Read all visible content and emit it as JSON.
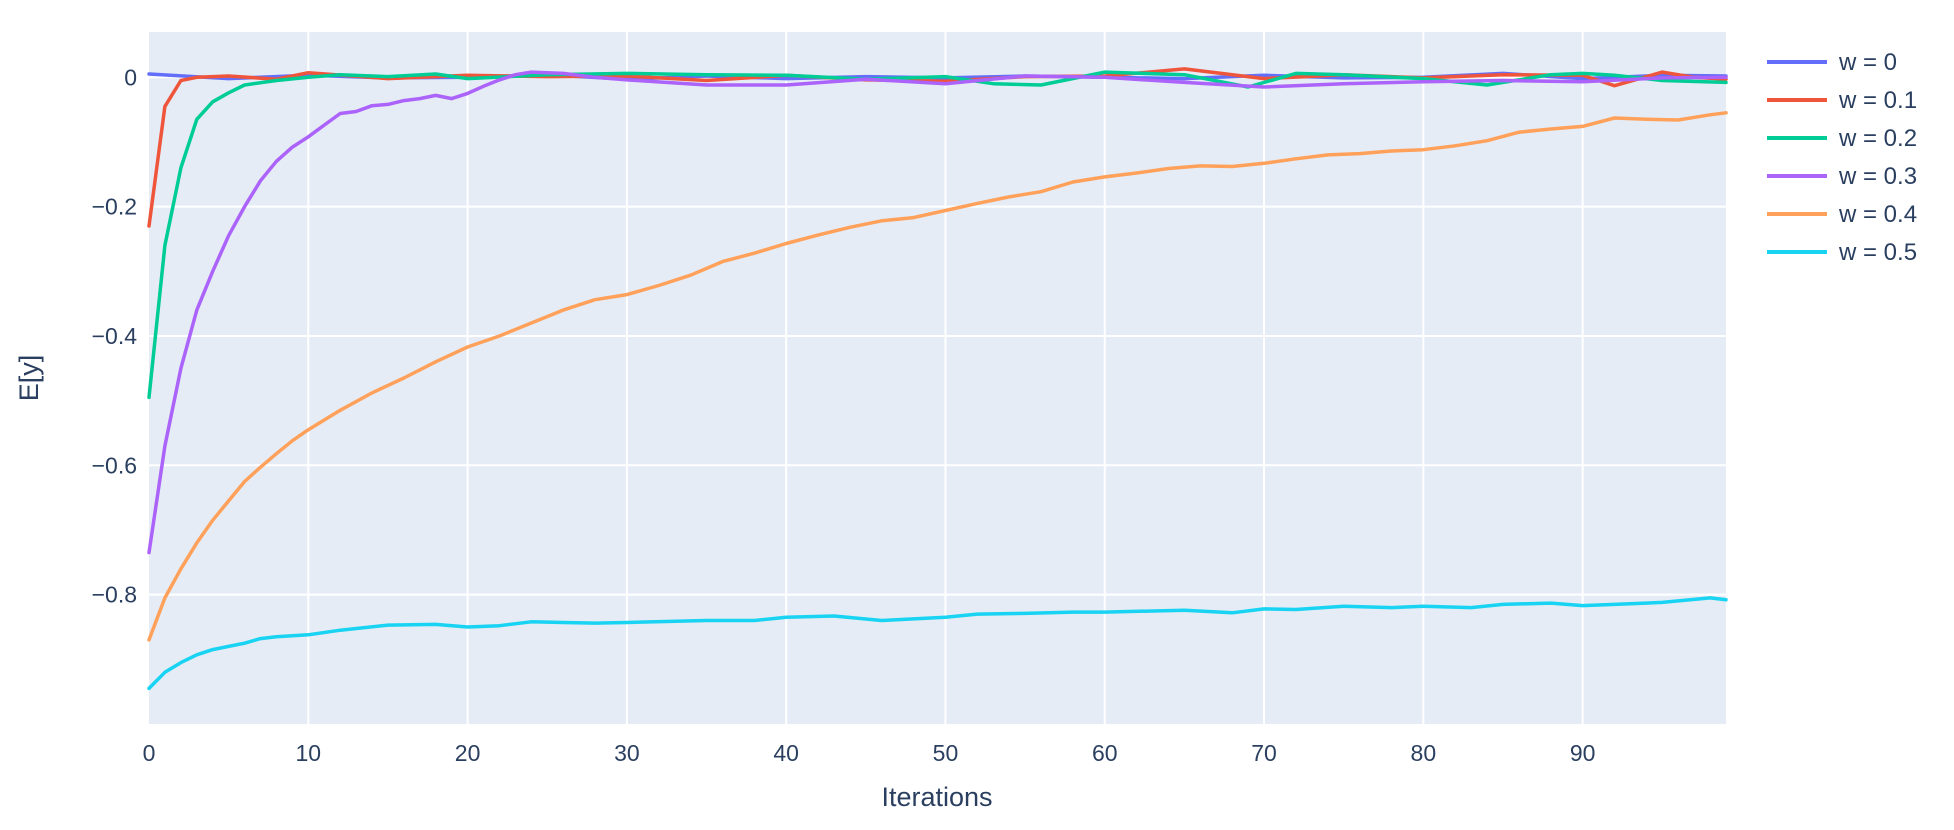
{
  "chart_data": {
    "type": "line",
    "title": "",
    "xlabel": "Iterations",
    "ylabel": "E[y]",
    "xlim": [
      0,
      99
    ],
    "ylim": [
      -1.0,
      0.07
    ],
    "x_ticks": [
      0,
      10,
      20,
      30,
      40,
      50,
      60,
      70,
      80,
      90
    ],
    "y_ticks": [
      0,
      -0.2,
      -0.4,
      -0.6,
      -0.8
    ],
    "y_tick_labels": [
      "0",
      "−0.2",
      "−0.4",
      "−0.6",
      "−0.8"
    ],
    "grid": true,
    "legend_position": "right",
    "plot_background": "#e5ecf6",
    "series": [
      {
        "name": "w = 0",
        "color": "#636efa",
        "x": [
          0,
          5,
          10,
          15,
          20,
          25,
          30,
          35,
          40,
          45,
          50,
          55,
          60,
          65,
          70,
          75,
          80,
          85,
          90,
          95,
          99
        ],
        "y": [
          0.005,
          -0.002,
          0.003,
          -0.001,
          0.0,
          0.004,
          -0.003,
          0.002,
          -0.002,
          0.001,
          -0.001,
          0.002,
          0.0,
          -0.002,
          0.003,
          -0.001,
          0.0,
          0.006,
          -0.002,
          0.003,
          0.002
        ]
      },
      {
        "name": "w = 0.1",
        "color": "#ef553b",
        "x": [
          0,
          1,
          2,
          3,
          5,
          8,
          10,
          15,
          20,
          25,
          30,
          35,
          40,
          45,
          50,
          55,
          60,
          65,
          70,
          75,
          80,
          85,
          90,
          92,
          95,
          97,
          99
        ],
        "y": [
          -0.23,
          -0.045,
          -0.005,
          0.0,
          0.002,
          -0.003,
          0.007,
          -0.002,
          0.003,
          0.001,
          0.002,
          -0.005,
          0.003,
          -0.004,
          -0.006,
          0.001,
          0.002,
          0.013,
          -0.002,
          0.004,
          -0.001,
          0.004,
          0.003,
          -0.013,
          0.008,
          0.0,
          -0.003
        ]
      },
      {
        "name": "w = 0.2",
        "color": "#00cc96",
        "x": [
          0,
          1,
          2,
          3,
          4,
          5,
          6,
          8,
          10,
          12,
          15,
          18,
          20,
          25,
          30,
          35,
          40,
          45,
          50,
          53,
          56,
          60,
          65,
          69,
          72,
          75,
          80,
          84,
          88,
          90,
          92,
          95,
          99
        ],
        "y": [
          -0.495,
          -0.26,
          -0.14,
          -0.065,
          -0.038,
          -0.024,
          -0.012,
          -0.005,
          0.0,
          0.004,
          0.001,
          0.005,
          -0.002,
          0.004,
          0.006,
          0.004,
          0.003,
          -0.003,
          0.001,
          -0.01,
          -0.012,
          0.008,
          0.004,
          -0.015,
          0.006,
          0.004,
          -0.002,
          -0.012,
          0.004,
          0.006,
          0.003,
          -0.005,
          -0.008
        ]
      },
      {
        "name": "w = 0.3",
        "color": "#ab63fa",
        "x": [
          0,
          1,
          2,
          3,
          4,
          5,
          6,
          7,
          8,
          9,
          10,
          11,
          12,
          13,
          14,
          15,
          16,
          17,
          18,
          19,
          20,
          21,
          22,
          23,
          24,
          25,
          26,
          28,
          30,
          35,
          40,
          45,
          50,
          55,
          60,
          65,
          70,
          75,
          80,
          85,
          90,
          95,
          99
        ],
        "y": [
          -0.735,
          -0.57,
          -0.45,
          -0.36,
          -0.3,
          -0.245,
          -0.2,
          -0.16,
          -0.13,
          -0.108,
          -0.092,
          -0.074,
          -0.056,
          -0.053,
          -0.044,
          -0.042,
          -0.036,
          -0.033,
          -0.028,
          -0.033,
          -0.025,
          -0.014,
          -0.004,
          0.004,
          0.008,
          0.007,
          0.006,
          0.0,
          -0.004,
          -0.012,
          -0.012,
          -0.003,
          -0.01,
          0.002,
          0.0,
          -0.008,
          -0.015,
          -0.01,
          -0.007,
          -0.005,
          -0.007,
          -0.001,
          0.0
        ]
      },
      {
        "name": "w = 0.4",
        "color": "#ffa15a",
        "x": [
          0,
          1,
          2,
          3,
          4,
          5,
          6,
          7,
          8,
          9,
          10,
          12,
          14,
          16,
          18,
          20,
          22,
          24,
          26,
          28,
          30,
          32,
          34,
          36,
          38,
          40,
          42,
          44,
          46,
          48,
          50,
          52,
          54,
          56,
          58,
          60,
          62,
          64,
          66,
          68,
          70,
          72,
          74,
          76,
          78,
          80,
          82,
          84,
          86,
          88,
          90,
          92,
          94,
          96,
          98,
          99
        ],
        "y": [
          -0.87,
          -0.805,
          -0.76,
          -0.72,
          -0.685,
          -0.655,
          -0.625,
          -0.603,
          -0.582,
          -0.562,
          -0.545,
          -0.515,
          -0.488,
          -0.465,
          -0.44,
          -0.417,
          -0.4,
          -0.38,
          -0.36,
          -0.344,
          -0.336,
          -0.322,
          -0.306,
          -0.285,
          -0.272,
          -0.257,
          -0.244,
          -0.232,
          -0.222,
          -0.217,
          -0.206,
          -0.195,
          -0.185,
          -0.177,
          -0.162,
          -0.154,
          -0.148,
          -0.141,
          -0.137,
          -0.138,
          -0.133,
          -0.126,
          -0.12,
          -0.118,
          -0.114,
          -0.112,
          -0.106,
          -0.098,
          -0.085,
          -0.08,
          -0.076,
          -0.063,
          -0.065,
          -0.066,
          -0.058,
          -0.055
        ]
      },
      {
        "name": "w = 0.5",
        "color": "#19d3f3",
        "x": [
          0,
          1,
          2,
          3,
          4,
          5,
          6,
          7,
          8,
          10,
          12,
          15,
          18,
          20,
          22,
          24,
          26,
          28,
          30,
          35,
          38,
          40,
          43,
          46,
          50,
          52,
          55,
          58,
          60,
          65,
          68,
          70,
          72,
          75,
          78,
          80,
          83,
          85,
          88,
          90,
          92,
          95,
          98,
          99
        ],
        "y": [
          -0.945,
          -0.92,
          -0.905,
          -0.893,
          -0.885,
          -0.88,
          -0.875,
          -0.868,
          -0.865,
          -0.862,
          -0.855,
          -0.847,
          -0.846,
          -0.85,
          -0.848,
          -0.842,
          -0.843,
          -0.844,
          -0.843,
          -0.84,
          -0.84,
          -0.835,
          -0.833,
          -0.84,
          -0.835,
          -0.83,
          -0.829,
          -0.827,
          -0.827,
          -0.824,
          -0.828,
          -0.822,
          -0.823,
          -0.818,
          -0.82,
          -0.818,
          -0.82,
          -0.815,
          -0.813,
          -0.817,
          -0.815,
          -0.812,
          -0.805,
          -0.808
        ]
      }
    ]
  }
}
